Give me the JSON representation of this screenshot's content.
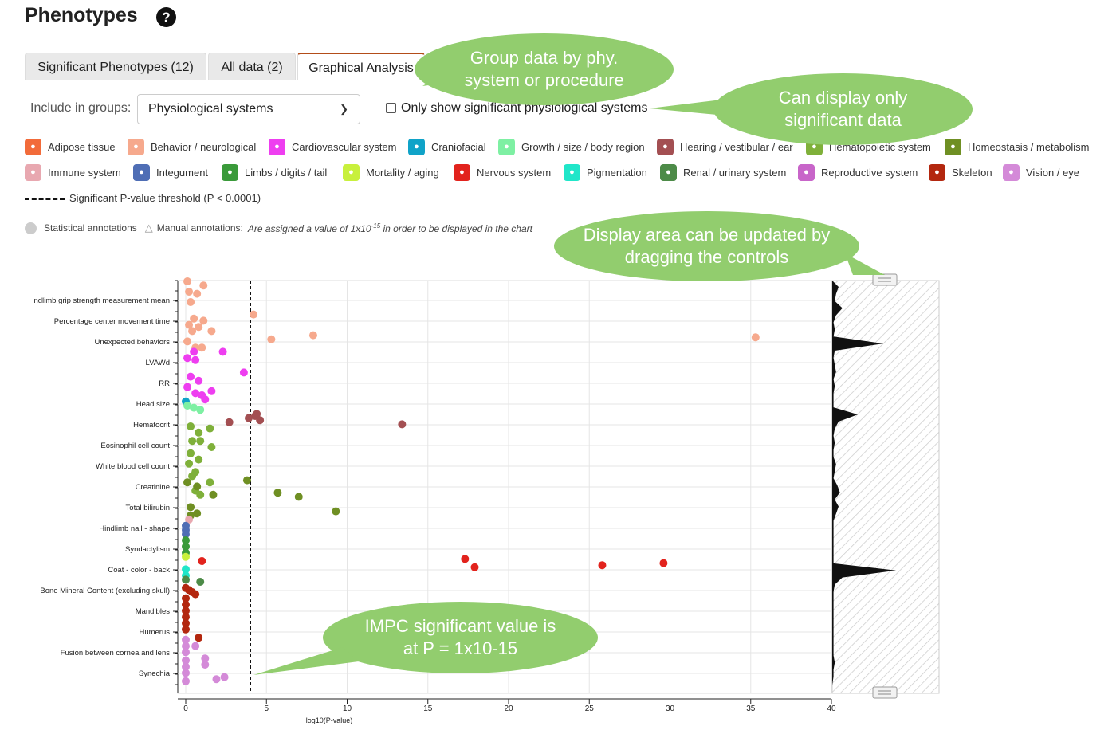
{
  "title": "Phenotypes",
  "help_icon": "?",
  "tabs": [
    {
      "label": "Significant Phenotypes (12)"
    },
    {
      "label": "All data (2)"
    },
    {
      "label": "Graphical Analysis"
    }
  ],
  "groups": {
    "label": "Include in groups:",
    "value": "Physiological systems"
  },
  "significant_toggle": {
    "label": "Only show significant physiological systems",
    "checked": false
  },
  "legend": [
    {
      "label": "Adipose tissue",
      "color": "#f26b3a",
      "icon": "adipose-icon"
    },
    {
      "label": "Behavior / neurological",
      "color": "#f6a98d",
      "icon": "behavior-icon"
    },
    {
      "label": "Cardiovascular system",
      "color": "#ee3ef0",
      "icon": "heart-icon"
    },
    {
      "label": "Craniofacial",
      "color": "#10a3c8",
      "icon": "skull-icon"
    },
    {
      "label": "Growth / size / body region",
      "color": "#7ef0a3",
      "icon": "growth-icon"
    },
    {
      "label": "Hearing / vestibular / ear",
      "color": "#a34f52",
      "icon": "ear-icon"
    },
    {
      "label": "Hematopoietic system",
      "color": "#7fb03a",
      "icon": "blood-icon"
    },
    {
      "label": "Homeostasis / metabolism",
      "color": "#6f8f23",
      "icon": "bolt-icon"
    },
    {
      "label": "Immune system",
      "color": "#e8a8b0",
      "icon": "immune-icon"
    },
    {
      "label": "Integument",
      "color": "#4f6eb5",
      "icon": "skin-icon"
    },
    {
      "label": "Limbs / digits / tail",
      "color": "#3a9a3a",
      "icon": "check-icon"
    },
    {
      "label": "Mortality / aging",
      "color": "#c8f03c",
      "icon": "skull-crossbones-icon"
    },
    {
      "label": "Nervous system",
      "color": "#e2231d",
      "icon": "neuron-icon"
    },
    {
      "label": "Pigmentation",
      "color": "#20e6c9",
      "icon": "pigment-icon"
    },
    {
      "label": "Renal / urinary system",
      "color": "#4d8b48",
      "icon": "kidney-icon"
    },
    {
      "label": "Reproductive system",
      "color": "#c865c9",
      "icon": "reproductive-icon"
    },
    {
      "label": "Skeleton",
      "color": "#b3270f",
      "icon": "skeleton-icon"
    },
    {
      "label": "Vision / eye",
      "color": "#d48ad8",
      "icon": "eye-icon"
    }
  ],
  "threshold_legend": "Significant P-value threshold (P < 0.0001)",
  "annotations": {
    "statistical": "Statistical annotations",
    "manual": "Manual annotations:",
    "note_prefix": "Are assigned a value of 1x10",
    "note_exp": "-15",
    "note_suffix": " in order to be displayed in the chart"
  },
  "callouts": [
    {
      "text": "Group data by phy. system or procedure"
    },
    {
      "text": "Can display only significant data"
    },
    {
      "text": "Display area can be updated by dragging the controls"
    },
    {
      "text": "IMPC significant value is at P = 1x10-15"
    }
  ],
  "chart_data": {
    "type": "scatter",
    "xlabel": "log10(P-value)",
    "xlim": [
      0,
      40
    ],
    "x_ticks": [
      0,
      5,
      10,
      15,
      20,
      25,
      30,
      35,
      40
    ],
    "threshold": 4,
    "y_categories": [
      "indlimb grip strength measurement mean",
      "Percentage center movement time",
      "Unexpected behaviors",
      "LVAWd",
      "RR",
      "Head size",
      "Hematocrit",
      "Eosinophil cell count",
      "White blood cell count",
      "Creatinine",
      "Total bilirubin",
      "Hindlimb nail - shape",
      "Syndactylism",
      "Coat - color - back",
      "Bone Mineral Content (excluding skull)",
      "Mandibles",
      "Humerus",
      "Fusion between cornea and lens",
      "Synechia"
    ],
    "series": [
      {
        "name": "Behavior / neurological",
        "color": "#f6a98d",
        "points": [
          [
            0.1,
            0.0
          ],
          [
            1.1,
            0.2
          ],
          [
            0.2,
            0.5
          ],
          [
            0.7,
            0.6
          ],
          [
            0.3,
            1.0
          ],
          [
            4.2,
            1.6
          ],
          [
            0.5,
            1.8
          ],
          [
            1.1,
            1.9
          ],
          [
            0.2,
            2.1
          ],
          [
            0.8,
            2.2
          ],
          [
            0.4,
            2.4
          ],
          [
            1.6,
            2.4
          ],
          [
            7.9,
            2.6
          ],
          [
            35.3,
            2.7
          ],
          [
            5.3,
            2.8
          ],
          [
            0.1,
            2.9
          ],
          [
            0.6,
            3.2
          ],
          [
            1.0,
            3.2
          ]
        ]
      },
      {
        "name": "Cardiovascular system",
        "color": "#ee3ef0",
        "points": [
          [
            0.5,
            3.4
          ],
          [
            2.3,
            3.4
          ],
          [
            0.1,
            3.7
          ],
          [
            0.6,
            3.8
          ],
          [
            3.6,
            4.4
          ],
          [
            0.3,
            4.6
          ],
          [
            0.8,
            4.8
          ],
          [
            0.1,
            5.1
          ],
          [
            1.6,
            5.3
          ],
          [
            0.6,
            5.4
          ],
          [
            1.0,
            5.5
          ],
          [
            1.2,
            5.7
          ]
        ]
      },
      {
        "name": "Craniofacial",
        "color": "#10a3c8",
        "points": [
          [
            0.0,
            5.8
          ]
        ]
      },
      {
        "name": "Growth / size / body region",
        "color": "#7ef0a3",
        "points": [
          [
            0.1,
            6.0
          ],
          [
            0.5,
            6.1
          ],
          [
            0.9,
            6.2
          ]
        ]
      },
      {
        "name": "Hearing / vestibular / ear",
        "color": "#a34f52",
        "points": [
          [
            4.4,
            6.4
          ],
          [
            4.3,
            6.5
          ],
          [
            3.9,
            6.6
          ],
          [
            4.6,
            6.7
          ],
          [
            2.7,
            6.8
          ],
          [
            13.4,
            6.9
          ]
        ]
      },
      {
        "name": "Hematopoietic system",
        "color": "#7fb03a",
        "points": [
          [
            0.3,
            7.0
          ],
          [
            1.5,
            7.1
          ],
          [
            0.8,
            7.3
          ],
          [
            0.4,
            7.7
          ],
          [
            0.9,
            7.7
          ],
          [
            1.6,
            8.0
          ],
          [
            0.3,
            8.3
          ],
          [
            0.8,
            8.6
          ],
          [
            0.2,
            8.8
          ],
          [
            0.6,
            9.2
          ],
          [
            0.4,
            9.4
          ],
          [
            1.5,
            9.7
          ],
          [
            0.6,
            10.1
          ],
          [
            0.9,
            10.3
          ]
        ]
      },
      {
        "name": "Homeostasis / metabolism",
        "color": "#6f8f23",
        "points": [
          [
            3.8,
            9.6
          ],
          [
            0.1,
            9.7
          ],
          [
            0.7,
            9.9
          ],
          [
            5.7,
            10.2
          ],
          [
            1.7,
            10.3
          ],
          [
            7.0,
            10.4
          ],
          [
            0.3,
            10.9
          ],
          [
            0.7,
            11.2
          ],
          [
            9.3,
            11.1
          ],
          [
            0.3,
            11.3
          ]
        ]
      },
      {
        "name": "Immune system",
        "color": "#e8a8b0",
        "points": [
          [
            0.2,
            11.5
          ]
        ]
      },
      {
        "name": "Integument",
        "color": "#4f6eb5",
        "points": [
          [
            0.0,
            11.8
          ],
          [
            0.0,
            12.0
          ],
          [
            0.0,
            12.2
          ]
        ]
      },
      {
        "name": "Limbs / digits / tail",
        "color": "#3a9a3a",
        "points": [
          [
            0.0,
            12.5
          ],
          [
            0.0,
            12.8
          ],
          [
            0.0,
            13.1
          ]
        ]
      },
      {
        "name": "Mortality / aging",
        "color": "#c8f03c",
        "points": [
          [
            0.0,
            13.3
          ]
        ]
      },
      {
        "name": "Nervous system",
        "color": "#e2231d",
        "points": [
          [
            17.3,
            13.4
          ],
          [
            1.0,
            13.5
          ],
          [
            29.6,
            13.6
          ],
          [
            25.8,
            13.7
          ],
          [
            17.9,
            13.8
          ]
        ]
      },
      {
        "name": "Pigmentation",
        "color": "#20e6c9",
        "points": [
          [
            0.0,
            13.9
          ],
          [
            0.0,
            14.2
          ]
        ]
      },
      {
        "name": "Renal / urinary system",
        "color": "#4d8b48",
        "points": [
          [
            0.0,
            14.4
          ],
          [
            0.9,
            14.5
          ]
        ]
      },
      {
        "name": "Skeleton",
        "color": "#b3270f",
        "points": [
          [
            0.0,
            14.8
          ],
          [
            0.2,
            14.9
          ],
          [
            0.4,
            15.0
          ],
          [
            0.6,
            15.1
          ],
          [
            0.0,
            15.3
          ],
          [
            0.0,
            15.6
          ],
          [
            0.0,
            15.9
          ],
          [
            0.0,
            16.2
          ],
          [
            0.0,
            16.5
          ],
          [
            0.0,
            16.8
          ],
          [
            0.8,
            17.2
          ]
        ]
      },
      {
        "name": "Vision / eye",
        "color": "#d48ad8",
        "points": [
          [
            0.0,
            17.3
          ],
          [
            0.0,
            17.6
          ],
          [
            0.6,
            17.6
          ],
          [
            0.0,
            17.9
          ],
          [
            1.2,
            18.2
          ],
          [
            0.0,
            18.3
          ],
          [
            1.2,
            18.5
          ],
          [
            0.0,
            18.6
          ],
          [
            0.0,
            18.9
          ],
          [
            2.4,
            19.1
          ],
          [
            1.9,
            19.2
          ],
          [
            0.0,
            19.3
          ]
        ]
      }
    ],
    "overview_density": [
      0.5,
      0.3,
      0.2,
      0.8,
      0.3,
      0.1,
      0.2,
      0.1,
      4.0,
      0.2,
      0.1,
      0.2,
      0.3,
      0.1,
      0.2,
      0.1,
      0.1,
      0.1,
      2.0,
      0.5,
      0.2,
      0.1,
      0.2,
      0.1,
      0.1,
      0.3,
      0.2,
      0.1,
      0.4,
      0.6,
      0.2,
      0.5,
      0.3,
      0.1,
      0.1,
      0.1,
      0.1,
      0.1,
      0.1,
      0.1,
      5.0,
      0.8,
      0.2,
      0.1,
      0.1,
      0.1,
      0.1,
      0.1,
      0.1,
      0.1,
      0.1,
      0.1,
      0.1,
      0.2,
      0.1,
      0.1
    ]
  }
}
